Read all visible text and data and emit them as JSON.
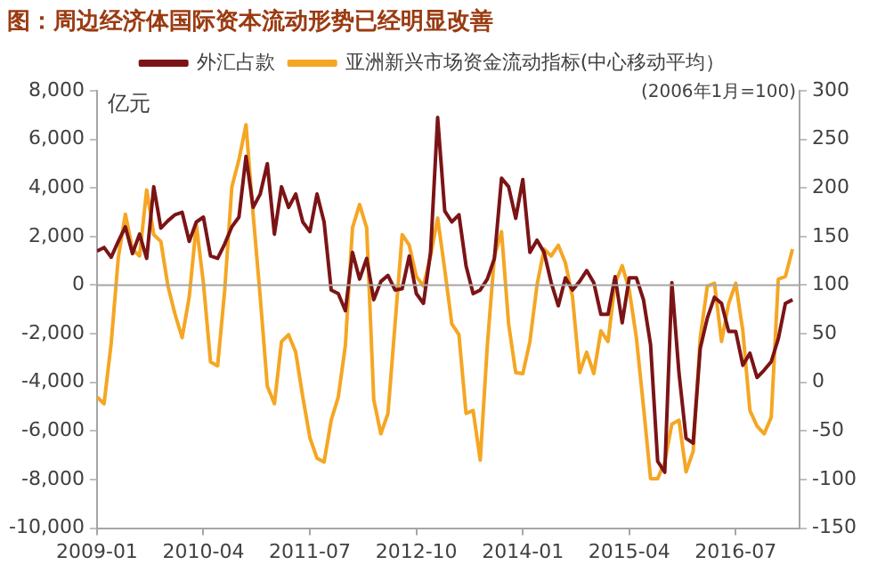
{
  "chart_data": {
    "type": "line",
    "title": "图：周边经济体国际资本流动形势已经明显改善",
    "ylabel": "亿元",
    "y2label": "(2006年1月=100)",
    "x": [
      "2009-01",
      "2009-02",
      "2009-03",
      "2009-04",
      "2009-05",
      "2009-06",
      "2009-07",
      "2009-08",
      "2009-09",
      "2009-10",
      "2009-11",
      "2009-12",
      "2010-01",
      "2010-02",
      "2010-03",
      "2010-04",
      "2010-05",
      "2010-06",
      "2010-07",
      "2010-08",
      "2010-09",
      "2010-10",
      "2010-11",
      "2010-12",
      "2011-01",
      "2011-02",
      "2011-03",
      "2011-04",
      "2011-05",
      "2011-06",
      "2011-07",
      "2011-08",
      "2011-09",
      "2011-10",
      "2011-11",
      "2011-12",
      "2012-01",
      "2012-02",
      "2012-03",
      "2012-04",
      "2012-05",
      "2012-06",
      "2012-07",
      "2012-08",
      "2012-09",
      "2012-10",
      "2012-11",
      "2012-12",
      "2013-01",
      "2013-02",
      "2013-03",
      "2013-04",
      "2013-05",
      "2013-06",
      "2013-07",
      "2013-08",
      "2013-09",
      "2013-10",
      "2013-11",
      "2013-12",
      "2014-01",
      "2014-02",
      "2014-03",
      "2014-04",
      "2014-05",
      "2014-06",
      "2014-07",
      "2014-08",
      "2014-09",
      "2014-10",
      "2014-11",
      "2014-12",
      "2015-01",
      "2015-02",
      "2015-03",
      "2015-04",
      "2015-05",
      "2015-06",
      "2015-07",
      "2015-08",
      "2015-09",
      "2015-10",
      "2015-11",
      "2015-12",
      "2016-01",
      "2016-02",
      "2016-03",
      "2016-04",
      "2016-05",
      "2016-06",
      "2016-07",
      "2016-08",
      "2016-09",
      "2016-10",
      "2016-11",
      "2016-12",
      "2017-01",
      "2017-02",
      "2017-03"
    ],
    "series": [
      {
        "name": "外汇占款",
        "color": "#7b1416",
        "values": [
          1400,
          1550,
          1150,
          1800,
          2400,
          1300,
          2100,
          1100,
          4050,
          2350,
          2650,
          2900,
          3000,
          1800,
          2600,
          2800,
          1200,
          1100,
          1700,
          2400,
          2800,
          5300,
          3200,
          3750,
          5000,
          2100,
          4050,
          3200,
          3750,
          2600,
          2200,
          3750,
          2600,
          -200,
          -350,
          -1050,
          1350,
          250,
          1100,
          -600,
          150,
          400,
          -200,
          -150,
          1200,
          -350,
          -750,
          1350,
          6900,
          3050,
          2600,
          2900,
          800,
          -350,
          -200,
          250,
          1100,
          4400,
          4050,
          2750,
          4350,
          1350,
          1850,
          1350,
          100,
          -850,
          300,
          -200,
          150,
          600,
          100,
          -1200,
          -1200,
          350,
          -1550,
          300,
          300,
          -600,
          -2450,
          -7250,
          -7700,
          100,
          -3600,
          -6300,
          -6500,
          -2600,
          -1350,
          -500,
          -750,
          -1900,
          -1900,
          -3300,
          -2800,
          -3800,
          -3500,
          -3150,
          -2200,
          -750,
          -600
        ]
      },
      {
        "name": "亚洲新兴市场资金流动指标(中心移动平均）",
        "color": "#f5a623",
        "axis": "y2",
        "values": [
          -15,
          -22,
          40,
          128,
          173,
          137,
          130,
          198,
          152,
          145,
          99,
          70,
          46,
          88,
          162,
          102,
          21,
          17,
          95,
          201,
          229,
          265,
          173,
          88,
          -4,
          -22,
          42,
          49,
          31,
          -15,
          -57,
          -78,
          -82,
          -39,
          -15,
          38,
          159,
          183,
          159,
          -18,
          -53,
          -32,
          60,
          152,
          141,
          109,
          99,
          130,
          169,
          116,
          60,
          49,
          -32,
          -29,
          -80,
          38,
          130,
          155,
          60,
          10,
          9,
          42,
          100,
          137,
          130,
          141,
          123,
          88,
          10,
          31,
          9,
          53,
          42,
          102,
          120,
          95,
          46,
          -25,
          -99,
          -99,
          -82,
          -43,
          -39,
          -92,
          -71,
          46,
          99,
          102,
          42,
          81,
          102,
          53,
          -29,
          -45,
          -53,
          -36,
          106,
          109,
          137
        ]
      }
    ],
    "xlim": [
      "2009-01",
      "2017-04"
    ],
    "xticks": [
      "2009-01",
      "2010-04",
      "2011-07",
      "2012-10",
      "2014-01",
      "2015-04",
      "2016-07"
    ],
    "ylim": [
      -10000,
      8000
    ],
    "yticks": [
      {
        "value": -10000,
        "label": "-10,000"
      },
      {
        "value": -8000,
        "label": "-8,000"
      },
      {
        "value": -6000,
        "label": "-6,000"
      },
      {
        "value": -4000,
        "label": "-4,000"
      },
      {
        "value": -2000,
        "label": "-2,000"
      },
      0,
      {
        "value": 2000,
        "label": "2,000"
      },
      {
        "value": 4000,
        "label": "4,000"
      },
      {
        "value": 6000,
        "label": "6,000"
      },
      {
        "value": 8000,
        "label": "8,000"
      }
    ],
    "y2lim": [
      -150,
      300
    ],
    "y2ticks": [
      -150,
      -100,
      -50,
      0,
      50,
      100,
      150,
      200,
      250,
      300
    ],
    "ref_lines": [
      {
        "axis": "y",
        "value": 0,
        "color": "#a6a6a6"
      }
    ],
    "grid": false,
    "legend": "top",
    "marker": "none",
    "line_style": "solid"
  }
}
